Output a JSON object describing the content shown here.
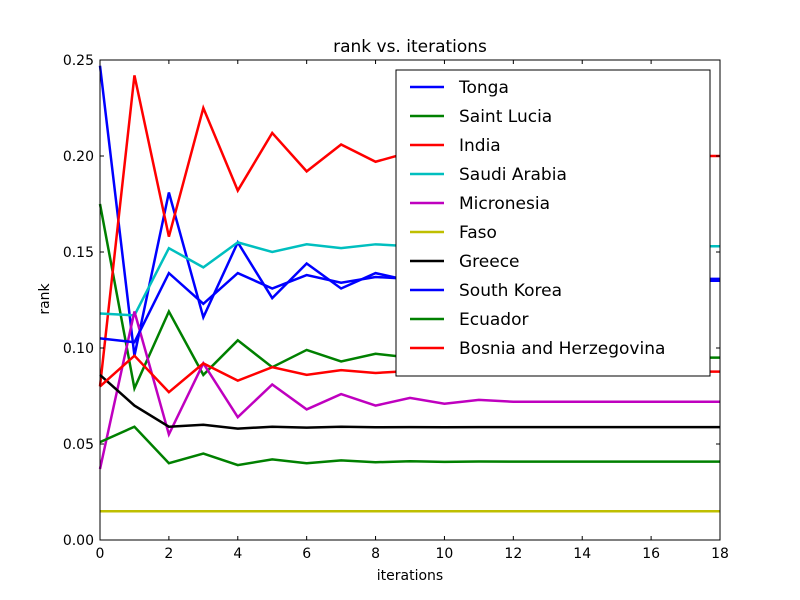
{
  "chart_data": {
    "type": "line",
    "title": "rank vs. iterations",
    "xlabel": "iterations",
    "ylabel": "rank",
    "xlim": [
      0,
      18
    ],
    "ylim": [
      0.0,
      0.25
    ],
    "x_ticks": [
      0,
      2,
      4,
      6,
      8,
      10,
      12,
      14,
      16,
      18
    ],
    "y_ticks": [
      0.0,
      0.05,
      0.1,
      0.15,
      0.2,
      0.25
    ],
    "y_tick_labels": [
      "0.00",
      "0.05",
      "0.10",
      "0.15",
      "0.20",
      "0.25"
    ],
    "grid": false,
    "legend_position": "top-right",
    "x": [
      0,
      1,
      2,
      3,
      4,
      5,
      6,
      7,
      8,
      9,
      10,
      11,
      12,
      13,
      14,
      15,
      16,
      17,
      18
    ],
    "series": [
      {
        "name": "Tonga",
        "color": "#0000ff",
        "values": [
          0.247,
          0.096,
          0.181,
          0.116,
          0.155,
          0.126,
          0.144,
          0.131,
          0.139,
          0.135,
          0.136,
          0.135,
          0.135,
          0.135,
          0.135,
          0.135,
          0.135,
          0.135,
          0.135
        ]
      },
      {
        "name": "Saint Lucia",
        "color": "#008000",
        "values": [
          0.175,
          0.079,
          0.119,
          0.086,
          0.104,
          0.09,
          0.099,
          0.093,
          0.097,
          0.095,
          0.096,
          0.095,
          0.095,
          0.095,
          0.095,
          0.095,
          0.095,
          0.095,
          0.095
        ]
      },
      {
        "name": "India",
        "color": "#ff0000",
        "values": [
          0.08,
          0.242,
          0.158,
          0.225,
          0.182,
          0.212,
          0.192,
          0.206,
          0.197,
          0.202,
          0.2,
          0.2,
          0.2,
          0.2,
          0.2,
          0.2,
          0.2,
          0.2,
          0.2
        ]
      },
      {
        "name": "Saudi Arabia",
        "color": "#00bfbf",
        "values": [
          0.118,
          0.117,
          0.152,
          0.142,
          0.155,
          0.15,
          0.154,
          0.152,
          0.154,
          0.153,
          0.153,
          0.153,
          0.153,
          0.153,
          0.153,
          0.153,
          0.153,
          0.153,
          0.153
        ]
      },
      {
        "name": "Micronesia",
        "color": "#bf00bf",
        "values": [
          0.037,
          0.119,
          0.055,
          0.092,
          0.064,
          0.081,
          0.068,
          0.076,
          0.07,
          0.074,
          0.071,
          0.073,
          0.072,
          0.072,
          0.072,
          0.072,
          0.072,
          0.072,
          0.072
        ]
      },
      {
        "name": "Faso",
        "color": "#bfbf00",
        "values": [
          0.015,
          0.015,
          0.015,
          0.015,
          0.015,
          0.015,
          0.015,
          0.015,
          0.015,
          0.015,
          0.015,
          0.015,
          0.015,
          0.015,
          0.015,
          0.015,
          0.015,
          0.015,
          0.015
        ]
      },
      {
        "name": "Greece",
        "color": "#000000",
        "values": [
          0.086,
          0.07,
          0.059,
          0.06,
          0.058,
          0.059,
          0.0585,
          0.059,
          0.0587,
          0.0588,
          0.0587,
          0.0588,
          0.0588,
          0.0588,
          0.0588,
          0.0588,
          0.0588,
          0.0588,
          0.0588
        ]
      },
      {
        "name": "South Korea",
        "color": "#0000ff",
        "values": [
          0.105,
          0.103,
          0.139,
          0.123,
          0.139,
          0.131,
          0.138,
          0.134,
          0.137,
          0.136,
          0.136,
          0.136,
          0.136,
          0.136,
          0.136,
          0.136,
          0.136,
          0.136,
          0.136
        ]
      },
      {
        "name": "Ecuador",
        "color": "#008000",
        "values": [
          0.051,
          0.059,
          0.04,
          0.045,
          0.039,
          0.042,
          0.04,
          0.0415,
          0.0405,
          0.041,
          0.0407,
          0.0409,
          0.0408,
          0.0408,
          0.0408,
          0.0408,
          0.0408,
          0.0408,
          0.0408
        ]
      },
      {
        "name": "Bosnia and Herzegovina",
        "color": "#ff0000",
        "values": [
          0.08,
          0.096,
          0.077,
          0.092,
          0.083,
          0.09,
          0.086,
          0.0885,
          0.087,
          0.088,
          0.0875,
          0.088,
          0.0877,
          0.0878,
          0.0877,
          0.0878,
          0.0877,
          0.0877,
          0.0877
        ]
      }
    ]
  }
}
